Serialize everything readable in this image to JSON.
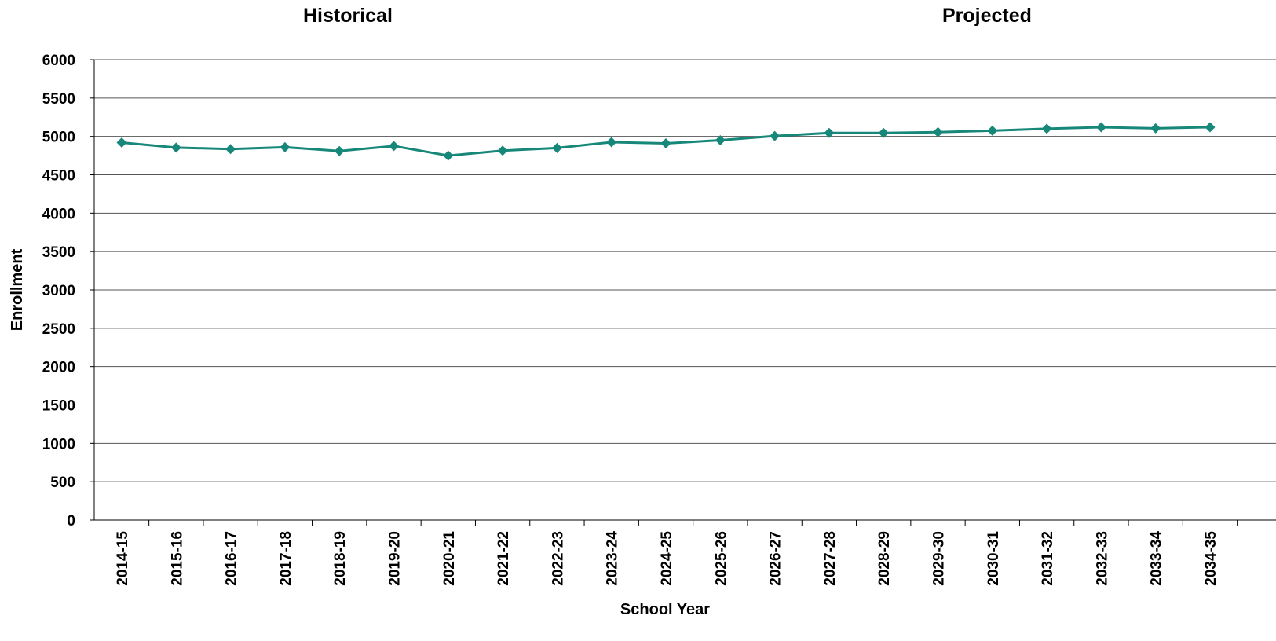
{
  "header": {
    "historical_label": "Historical",
    "projected_label": "Projected"
  },
  "chart_data": {
    "type": "line",
    "xlabel": "School Year",
    "ylabel": "Enrollment",
    "ylim": [
      0,
      6000
    ],
    "yticks": [
      0,
      500,
      1000,
      1500,
      2000,
      2500,
      3000,
      3500,
      4000,
      4500,
      5000,
      5500,
      6000
    ],
    "grid": "horizontal",
    "categories": [
      "2014-15",
      "2015-16",
      "2016-17",
      "2017-18",
      "2018-19",
      "2019-20",
      "2020-21",
      "2021-22",
      "2022-23",
      "2023-24",
      "2024-25",
      "2025-26",
      "2026-27",
      "2027-28",
      "2028-29",
      "2029-30",
      "2030-31",
      "2031-32",
      "2032-33",
      "2033-34",
      "2034-35"
    ],
    "series": [
      {
        "color": "#17877a",
        "marker": "diamond",
        "values": [
          4920,
          4855,
          4835,
          4860,
          4810,
          4875,
          4750,
          4815,
          4850,
          4925,
          4910,
          4950,
          5005,
          5045,
          5045,
          5055,
          5075,
          5100,
          5120,
          5105,
          5120
        ]
      }
    ]
  }
}
